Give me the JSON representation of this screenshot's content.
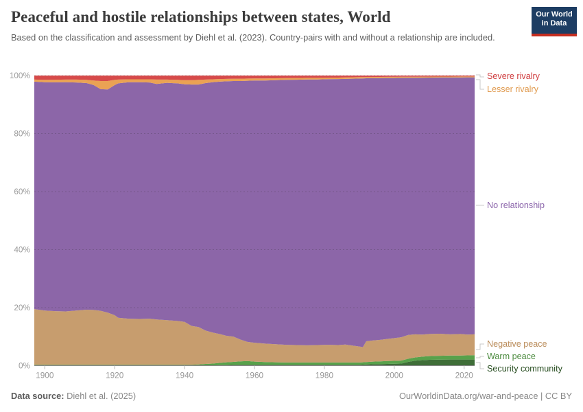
{
  "header": {
    "title": "Peaceful and hostile relationships between states, World",
    "subtitle": "Based on the classification and assessment by Diehl et al. (2023). Country-pairs with and without a relationship are included."
  },
  "logo": {
    "line1": "Our World",
    "line2": "in Data",
    "bg_color": "#1d3d63",
    "stripe_color": "#c52d20"
  },
  "footer": {
    "datasource_label": "Data source:",
    "datasource_value": " Diehl et al. (2025)",
    "credit": "OurWorldinData.org/war-and-peace | CC BY"
  },
  "chart_data": {
    "type": "area",
    "stacked": true,
    "unit": "%",
    "grid": "dashed",
    "ylim": [
      0,
      100
    ],
    "yticks": [
      0,
      20,
      40,
      60,
      80,
      100
    ],
    "xticks": [
      1900,
      1920,
      1940,
      1960,
      1980,
      2000,
      2020
    ],
    "x": [
      1897,
      1900,
      1903,
      1906,
      1909,
      1912,
      1914,
      1916,
      1918,
      1920,
      1921,
      1924,
      1927,
      1930,
      1932,
      1935,
      1938,
      1940,
      1942,
      1944,
      1946,
      1948,
      1950,
      1952,
      1954,
      1956,
      1958,
      1960,
      1963,
      1966,
      1969,
      1972,
      1975,
      1978,
      1981,
      1984,
      1986,
      1988,
      1990,
      1991,
      1992,
      1994,
      1996,
      1998,
      2000,
      2002,
      2004,
      2006,
      2008,
      2010,
      2013,
      2016,
      2019,
      2021,
      2023
    ],
    "series": [
      {
        "name": "Security community",
        "color": "#3f6e38",
        "label_color": "#274d20",
        "values": [
          0.05,
          0.05,
          0.05,
          0.05,
          0.05,
          0.05,
          0.05,
          0.05,
          0.05,
          0.05,
          0.05,
          0.05,
          0.05,
          0.05,
          0.05,
          0.05,
          0.05,
          0.05,
          0.05,
          0.05,
          0.1,
          0.1,
          0.15,
          0.2,
          0.25,
          0.3,
          0.3,
          0.3,
          0.3,
          0.3,
          0.3,
          0.3,
          0.3,
          0.3,
          0.3,
          0.3,
          0.3,
          0.3,
          0.3,
          0.35,
          0.4,
          0.5,
          0.55,
          0.6,
          0.65,
          0.7,
          1.3,
          1.7,
          1.9,
          2.0,
          2.05,
          2.1,
          2.1,
          2.1,
          2.1
        ]
      },
      {
        "name": "Warm peace",
        "color": "#58a14b",
        "label_color": "#4c8b3f",
        "values": [
          0.25,
          0.25,
          0.25,
          0.25,
          0.25,
          0.25,
          0.25,
          0.25,
          0.25,
          0.25,
          0.25,
          0.25,
          0.25,
          0.25,
          0.25,
          0.25,
          0.25,
          0.25,
          0.25,
          0.35,
          0.5,
          0.6,
          0.8,
          0.95,
          1.05,
          1.2,
          1.3,
          1.1,
          0.95,
          0.85,
          0.8,
          0.8,
          0.8,
          0.8,
          0.8,
          0.8,
          0.8,
          0.8,
          0.8,
          0.8,
          0.85,
          0.9,
          0.95,
          1.0,
          1.0,
          1.05,
          1.1,
          1.15,
          1.2,
          1.3,
          1.35,
          1.4,
          1.4,
          1.45,
          1.5
        ]
      },
      {
        "name": "Negative peace",
        "color": "#c79d6e",
        "label_color": "#bb8d5b",
        "values": [
          19.2,
          18.7,
          18.5,
          18.4,
          18.7,
          19.0,
          18.9,
          18.6,
          18.0,
          17.1,
          16.2,
          15.9,
          15.8,
          15.9,
          15.6,
          15.4,
          15.1,
          14.8,
          13.4,
          12.9,
          11.5,
          10.7,
          9.95,
          9.15,
          8.7,
          7.5,
          6.6,
          6.5,
          6.35,
          6.25,
          6.1,
          6.0,
          5.9,
          6.0,
          6.1,
          6.0,
          6.2,
          5.8,
          5.5,
          5.25,
          7.15,
          7.3,
          7.4,
          7.6,
          7.85,
          8.05,
          8.2,
          7.95,
          7.6,
          7.6,
          7.6,
          7.3,
          7.4,
          7.15,
          7.2
        ]
      },
      {
        "name": "No relationship",
        "color": "#8c66a8",
        "label_color": "#8a63aa",
        "values": [
          78.4,
          78.7,
          78.85,
          79.0,
          78.6,
          78.1,
          77.5,
          76.4,
          76.9,
          79.3,
          80.8,
          81.5,
          81.6,
          81.4,
          81.2,
          81.8,
          81.9,
          81.9,
          83.2,
          83.6,
          85.3,
          86.3,
          87.0,
          87.7,
          88.1,
          89.1,
          90.0,
          90.4,
          90.7,
          91.0,
          91.3,
          91.45,
          91.65,
          91.55,
          91.55,
          91.7,
          91.55,
          92.0,
          92.35,
          92.6,
          90.65,
          90.35,
          90.2,
          89.95,
          89.65,
          89.4,
          88.64,
          88.45,
          88.57,
          88.39,
          88.34,
          88.55,
          88.46,
          88.69,
          88.59
        ]
      },
      {
        "name": "Lesser rivalry",
        "color": "#eaa254",
        "label_color": "#e09a4e",
        "values": [
          0.7,
          0.8,
          0.9,
          0.9,
          1.0,
          1.1,
          1.6,
          2.8,
          2.9,
          1.8,
          1.3,
          1.0,
          1.0,
          1.1,
          1.5,
          1.1,
          1.2,
          1.4,
          1.5,
          1.6,
          1.2,
          1.0,
          0.9,
          0.85,
          0.8,
          0.8,
          0.75,
          0.7,
          0.7,
          0.65,
          0.6,
          0.6,
          0.55,
          0.55,
          0.5,
          0.5,
          0.5,
          0.5,
          0.5,
          0.48,
          0.45,
          0.45,
          0.42,
          0.4,
          0.4,
          0.38,
          0.36,
          0.35,
          0.35,
          0.33,
          0.3,
          0.3,
          0.3,
          0.28,
          0.28
        ]
      },
      {
        "name": "Severe rivalry",
        "color": "#d64a4a",
        "label_color": "#cf3c3e",
        "values": [
          1.4,
          1.5,
          1.45,
          1.4,
          1.4,
          1.5,
          1.7,
          1.9,
          1.9,
          1.5,
          1.4,
          1.3,
          1.3,
          1.3,
          1.4,
          1.4,
          1.5,
          1.6,
          1.6,
          1.5,
          1.4,
          1.3,
          1.2,
          1.15,
          1.1,
          1.1,
          1.05,
          1.0,
          1.0,
          0.95,
          0.9,
          0.85,
          0.8,
          0.8,
          0.75,
          0.7,
          0.65,
          0.6,
          0.55,
          0.52,
          0.5,
          0.5,
          0.48,
          0.45,
          0.45,
          0.42,
          0.4,
          0.4,
          0.38,
          0.38,
          0.36,
          0.35,
          0.34,
          0.33,
          0.33
        ]
      }
    ]
  }
}
